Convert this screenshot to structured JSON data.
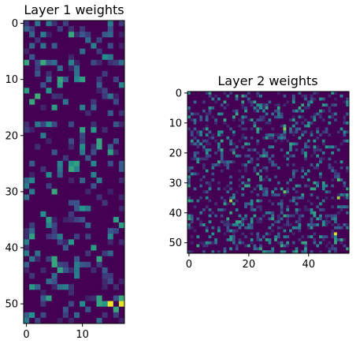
{
  "chart_data": [
    {
      "type": "heatmap",
      "title": "Layer 1 weights",
      "rows": 54,
      "cols": 18,
      "colormap": "viridis",
      "value_range": [
        0,
        1
      ],
      "x_ticks": [
        0,
        10
      ],
      "y_ticks": [
        0,
        10,
        20,
        30,
        40,
        50
      ],
      "xlabel": "",
      "ylabel": "",
      "density": 0.3,
      "seed": 11,
      "highlights": [
        {
          "row": 50,
          "col": 15,
          "value": 0.98
        },
        {
          "row": 50,
          "col": 17,
          "value": 0.96
        },
        {
          "row": 49,
          "col": 17,
          "value": 0.6
        },
        {
          "row": 13,
          "col": 2,
          "value": 0.62
        },
        {
          "row": 36,
          "col": 17,
          "value": 0.55
        }
      ]
    },
    {
      "type": "heatmap",
      "title": "Layer 2 weights",
      "rows": 54,
      "cols": 54,
      "colormap": "viridis",
      "value_range": [
        0,
        1
      ],
      "x_ticks": [
        0,
        20,
        40
      ],
      "y_ticks": [
        0,
        10,
        20,
        30,
        40,
        50
      ],
      "xlabel": "",
      "ylabel": "",
      "density": 0.3,
      "seed": 29,
      "highlights": [
        {
          "row": 47,
          "col": 49,
          "value": 0.95
        },
        {
          "row": 36,
          "col": 14,
          "value": 0.85
        },
        {
          "row": 35,
          "col": 50,
          "value": 0.85
        },
        {
          "row": 12,
          "col": 32,
          "value": 0.8
        },
        {
          "row": 33,
          "col": 32,
          "value": 0.75
        },
        {
          "row": 29,
          "col": 50,
          "value": 0.7
        }
      ]
    }
  ]
}
